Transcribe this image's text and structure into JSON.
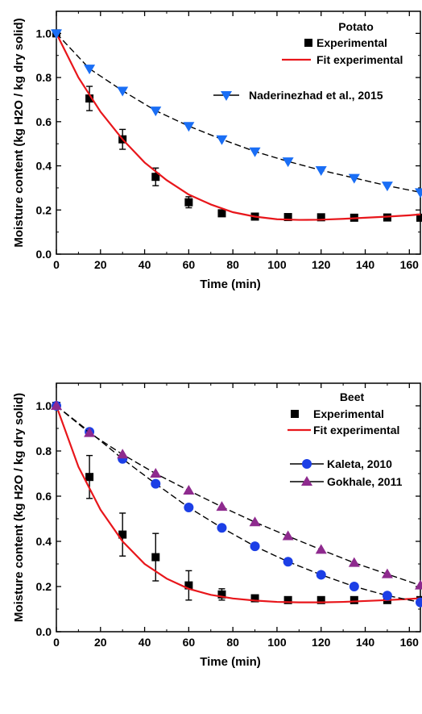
{
  "chart_data": [
    {
      "type": "scatter",
      "title": "Potato",
      "xlabel": "Time (min)",
      "ylabel": "Moisture content (kg H2O / kg dry solid)",
      "xlim": [
        0,
        165
      ],
      "ylim": [
        0,
        1.1
      ],
      "xticks": [
        0,
        20,
        40,
        60,
        80,
        100,
        120,
        140,
        160
      ],
      "yticks": [
        0.0,
        0.2,
        0.4,
        0.6,
        0.8,
        1.0
      ],
      "legend_position": "top-right",
      "series": [
        {
          "name": "Experimental",
          "kind": "markers-errorbars",
          "marker": "square",
          "color": "#000000",
          "x": [
            0,
            15,
            30,
            45,
            60,
            75,
            90,
            105,
            120,
            135,
            150,
            165
          ],
          "y": [
            1.0,
            0.705,
            0.52,
            0.35,
            0.235,
            0.185,
            0.17,
            0.168,
            0.167,
            0.165,
            0.166,
            0.165
          ],
          "err": [
            0,
            0.055,
            0.045,
            0.04,
            0.025,
            0.012,
            0.01,
            0,
            0,
            0,
            0,
            0
          ]
        },
        {
          "name": "Fit experimental",
          "kind": "line",
          "color": "#e8161b",
          "x": [
            0,
            10,
            20,
            30,
            40,
            50,
            60,
            70,
            80,
            90,
            100,
            110,
            120,
            130,
            140,
            150,
            160,
            165
          ],
          "y": [
            1.0,
            0.8,
            0.645,
            0.52,
            0.415,
            0.335,
            0.27,
            0.225,
            0.19,
            0.17,
            0.158,
            0.155,
            0.156,
            0.16,
            0.165,
            0.17,
            0.176,
            0.18
          ]
        },
        {
          "name": "Naderinezhad et al., 2015",
          "kind": "line-markers",
          "marker": "triangle-down",
          "color": "#1a6ef5",
          "x": [
            0,
            15,
            30,
            45,
            60,
            75,
            90,
            105,
            120,
            135,
            150,
            165
          ],
          "y": [
            1.0,
            0.84,
            0.74,
            0.65,
            0.58,
            0.52,
            0.465,
            0.42,
            0.38,
            0.345,
            0.31,
            0.28
          ]
        }
      ]
    },
    {
      "type": "scatter",
      "title": "Beet",
      "xlabel": "Time (min)",
      "ylabel": "Moisture content (kg H2O / kg dry solid)",
      "xlim": [
        0,
        165
      ],
      "ylim": [
        0,
        1.1
      ],
      "xticks": [
        0,
        20,
        40,
        60,
        80,
        100,
        120,
        140,
        160
      ],
      "yticks": [
        0.0,
        0.2,
        0.4,
        0.6,
        0.8,
        1.0
      ],
      "legend_position": "top-right",
      "series": [
        {
          "name": "Experimental",
          "kind": "markers-errorbars",
          "marker": "square",
          "color": "#000000",
          "x": [
            0,
            15,
            30,
            45,
            60,
            75,
            90,
            105,
            120,
            135,
            150,
            165
          ],
          "y": [
            1.0,
            0.685,
            0.43,
            0.33,
            0.205,
            0.165,
            0.148,
            0.14,
            0.14,
            0.14,
            0.14,
            0.14
          ],
          "err": [
            0,
            0.095,
            0.095,
            0.105,
            0.065,
            0.025,
            0.01,
            0,
            0,
            0,
            0,
            0
          ]
        },
        {
          "name": "Fit experimental",
          "kind": "line",
          "color": "#e8161b",
          "x": [
            0,
            10,
            20,
            30,
            40,
            50,
            60,
            70,
            80,
            90,
            100,
            110,
            120,
            130,
            140,
            150,
            160,
            165
          ],
          "y": [
            1.0,
            0.73,
            0.54,
            0.4,
            0.3,
            0.235,
            0.19,
            0.163,
            0.147,
            0.138,
            0.132,
            0.13,
            0.13,
            0.132,
            0.136,
            0.14,
            0.145,
            0.148
          ]
        },
        {
          "name": "Kaleta, 2010",
          "kind": "line-markers",
          "marker": "circle",
          "color": "#1c3fe6",
          "x": [
            0,
            15,
            30,
            45,
            60,
            75,
            90,
            105,
            120,
            135,
            150,
            165
          ],
          "y": [
            1.0,
            0.885,
            0.765,
            0.655,
            0.55,
            0.46,
            0.378,
            0.31,
            0.252,
            0.2,
            0.16,
            0.13
          ]
        },
        {
          "name": "Gokhale, 2011",
          "kind": "line-markers",
          "marker": "triangle-up",
          "color": "#8e2a8e",
          "x": [
            0,
            15,
            30,
            45,
            60,
            75,
            90,
            105,
            120,
            135,
            150,
            165
          ],
          "y": [
            1.0,
            0.88,
            0.785,
            0.7,
            0.625,
            0.553,
            0.485,
            0.423,
            0.363,
            0.305,
            0.255,
            0.205
          ]
        }
      ]
    }
  ]
}
